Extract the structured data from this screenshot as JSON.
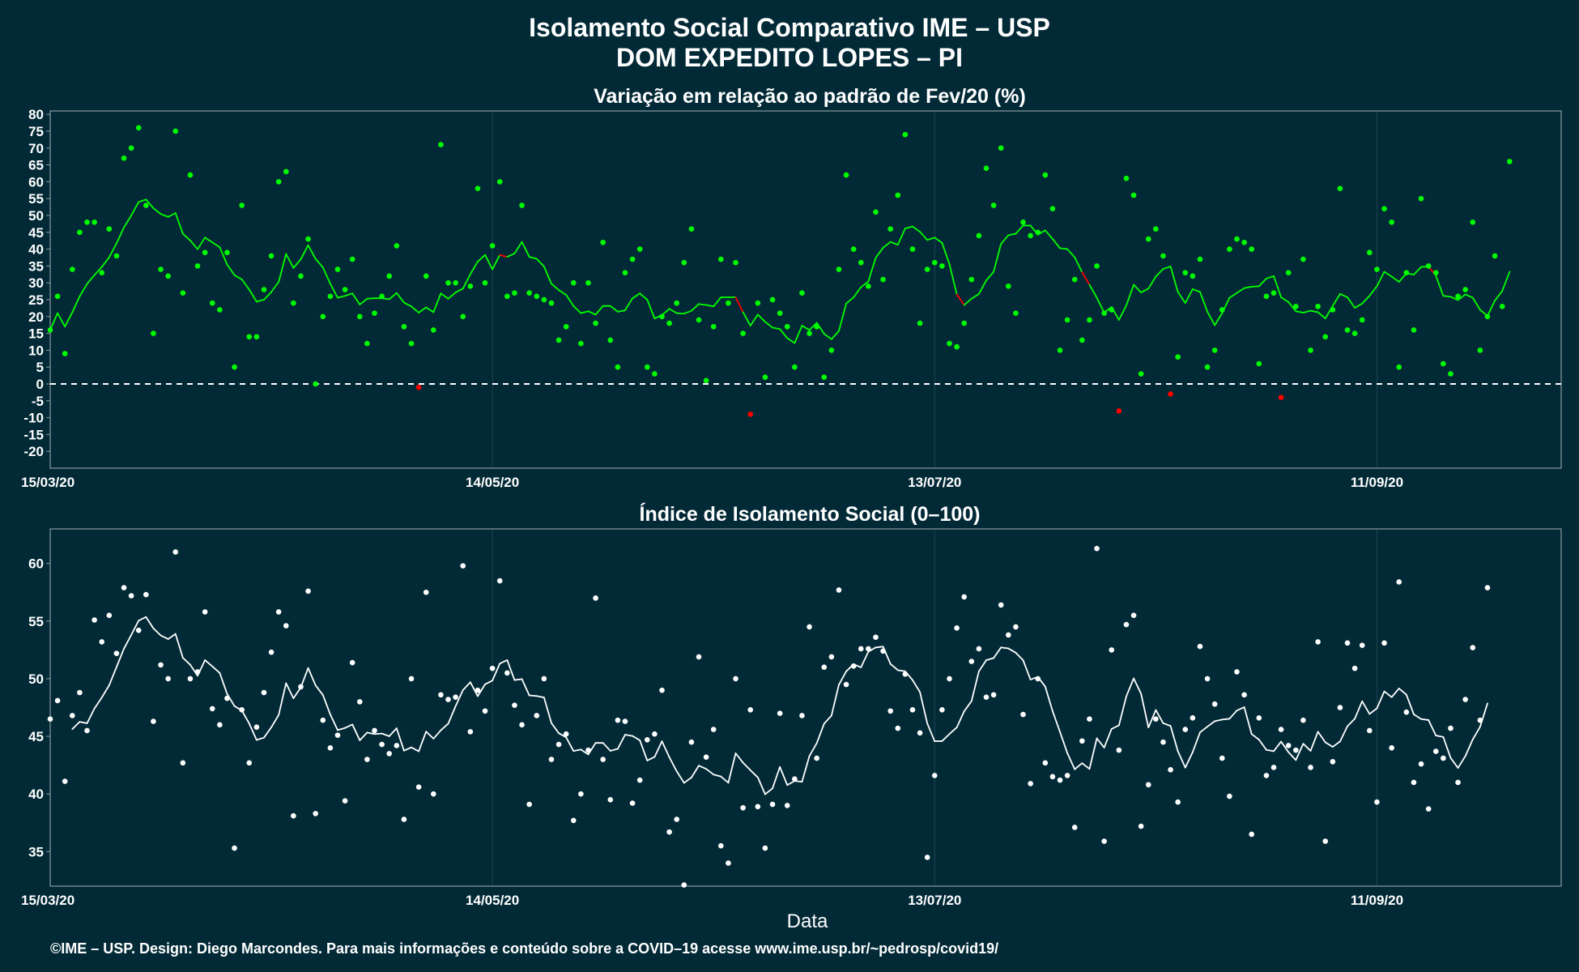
{
  "header": {
    "title_line1": "Isolamento Social Comparativo IME – USP",
    "title_line2": "DOM EXPEDITO LOPES – PI"
  },
  "xlabel": "Data",
  "footer": "©IME – USP. Design: Diego Marcondes. Para mais informações e conteúdo sobre a COVID–19 acesse www.ime.usp.br/~pedrosp/covid19/",
  "colors": {
    "background": "#022a36",
    "positive": "#00ff00",
    "negative": "#ff0000",
    "index": "#ffffff",
    "frame": "#8a9aa0"
  },
  "chart_data": [
    {
      "type": "scatter",
      "title": "Variação em relação ao padrão de Fev/20 (%)",
      "x_start": "2020-03-15",
      "x_end": "2020-10-06",
      "xticks": [
        "15/03/20",
        "14/05/20",
        "13/07/20",
        "11/09/20"
      ],
      "ylim": [
        -25,
        81
      ],
      "yticks": [
        -20,
        -15,
        -10,
        -5,
        0,
        5,
        10,
        15,
        20,
        25,
        30,
        35,
        40,
        45,
        50,
        55,
        60,
        65,
        70,
        75,
        80
      ],
      "reference_line": 0,
      "grid": true,
      "moving_average_line": true,
      "series": [
        {
          "values": [
            16,
            26,
            9,
            34,
            45,
            48,
            48,
            33,
            46,
            38,
            67,
            70,
            76,
            53,
            15,
            34,
            32,
            75,
            27,
            62,
            35,
            39,
            24,
            22,
            39,
            5,
            53,
            14,
            14,
            28,
            38,
            60,
            63,
            24,
            32,
            43,
            0,
            20,
            26,
            34,
            28,
            37,
            20,
            12,
            21,
            26,
            32,
            41,
            17,
            12,
            -1,
            32,
            16,
            71,
            30,
            30,
            20,
            29,
            58,
            30,
            41,
            60,
            26,
            27,
            53,
            27,
            26,
            25,
            24,
            13,
            17,
            30,
            12,
            30,
            18,
            42,
            13,
            5,
            33,
            37,
            40,
            5,
            3,
            20,
            18,
            24,
            36,
            46,
            19,
            1,
            17,
            37,
            24,
            36,
            15,
            -9,
            24,
            2,
            25,
            21,
            17,
            5,
            27,
            15,
            17,
            2,
            10,
            34,
            62,
            40,
            36,
            29,
            51,
            31,
            46,
            56,
            74,
            40,
            18,
            34,
            36,
            35,
            12,
            11,
            18,
            31,
            44,
            64,
            53,
            70,
            29,
            21,
            48,
            44,
            45,
            62,
            52,
            10,
            19,
            31,
            13,
            19,
            35,
            21,
            22,
            -8,
            61,
            56,
            3,
            43,
            46,
            38,
            -3,
            8,
            33,
            32,
            37,
            5,
            10,
            22,
            40,
            43,
            42,
            40,
            6,
            26,
            27,
            -4,
            33,
            23,
            37,
            10,
            23,
            14,
            22,
            58,
            16,
            15,
            19,
            39,
            34,
            52,
            48,
            5,
            33,
            16,
            55,
            35,
            33,
            6,
            3,
            26,
            28,
            48,
            10,
            20,
            38,
            23,
            66
          ]
        }
      ]
    },
    {
      "type": "scatter",
      "title": "Índice de Isolamento Social (0–100)",
      "x_start": "2020-03-15",
      "x_end": "2020-10-06",
      "xticks": [
        "15/03/20",
        "14/05/20",
        "13/07/20",
        "11/09/20"
      ],
      "ylim": [
        32,
        63
      ],
      "yticks": [
        35,
        40,
        45,
        50,
        55,
        60
      ],
      "grid": true,
      "moving_average_line": true,
      "series": [
        {
          "values": [
            46.5,
            48.1,
            41.1,
            46.8,
            48.8,
            45.5,
            55.1,
            53.2,
            55.5,
            52.2,
            57.9,
            57.2,
            54.2,
            57.3,
            46.3,
            51.2,
            50.0,
            61.0,
            42.7,
            50.0,
            50.6,
            55.8,
            47.4,
            46.0,
            48.3,
            35.3,
            47.3,
            42.7,
            45.8,
            48.8,
            52.3,
            55.8,
            54.6,
            38.1,
            49.3,
            57.6,
            38.3,
            46.4,
            44.0,
            45.1,
            39.4,
            51.4,
            48.0,
            43.0,
            45.5,
            44.3,
            43.5,
            44.2,
            37.8,
            50.0,
            40.6,
            57.5,
            40.0,
            48.6,
            48.2,
            48.4,
            59.8,
            45.4,
            49.0,
            47.2,
            50.9,
            58.5,
            50.5,
            47.7,
            46.0,
            39.1,
            46.8,
            50.0,
            43.0,
            44.3,
            45.2,
            37.7,
            40.0,
            43.8,
            57.0,
            43.0,
            39.5,
            46.4,
            46.3,
            39.2,
            41.2,
            44.7,
            45.2,
            49.0,
            36.7,
            37.8,
            32.1,
            44.5,
            51.9,
            43.2,
            45.6,
            35.5,
            34.0,
            50.0,
            38.8,
            47.3,
            38.9,
            35.3,
            39.1,
            47.0,
            39.0,
            41.3,
            46.8,
            54.5,
            43.1,
            51.0,
            51.9,
            57.7,
            49.5,
            51.1,
            52.6,
            52.6,
            53.6,
            52.4,
            47.2,
            45.7,
            50.4,
            47.3,
            45.3,
            34.5,
            41.6,
            47.3,
            50.0,
            54.4,
            57.1,
            51.5,
            52.6,
            48.4,
            48.6,
            56.4,
            53.8,
            54.5,
            46.9,
            40.9,
            50.0,
            42.7,
            41.5,
            41.2,
            41.6,
            37.1,
            44.6,
            46.5,
            61.3,
            35.9,
            52.5,
            43.8,
            54.7,
            55.5,
            37.2,
            40.8,
            46.5,
            44.5,
            42.1,
            39.3,
            45.6,
            46.6,
            52.8,
            50.0,
            47.8,
            43.1,
            39.8,
            50.6,
            48.6,
            36.5,
            46.6,
            41.6,
            42.3,
            45.6,
            44.2,
            43.8,
            46.4,
            42.3,
            53.2,
            35.9,
            42.8,
            47.5,
            53.1,
            50.9,
            52.9,
            45.5,
            39.3,
            53.1,
            44.0,
            58.4,
            47.1,
            41.0,
            42.6,
            38.7,
            43.7,
            43.1,
            45.7,
            41.0,
            48.2,
            52.7,
            46.4,
            57.9
          ]
        }
      ]
    }
  ]
}
